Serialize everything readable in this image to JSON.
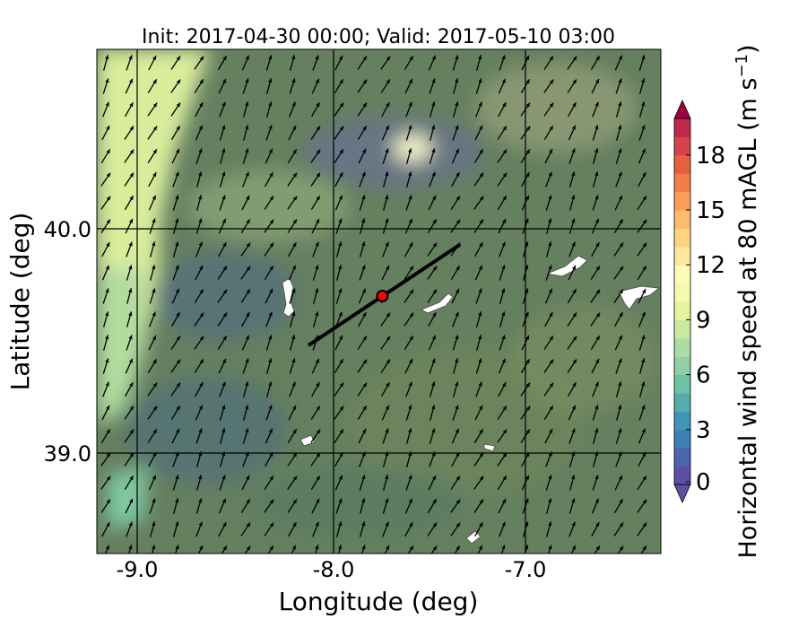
{
  "title": "Init: 2017-04-30 00:00; Valid: 2017-05-10 03:00",
  "xlabel": "Longitude (deg)",
  "ylabel": "Latitude (deg)",
  "colorbar_label": "Horizontal wind speed at 80 mAGL (m s$^{-1}$)",
  "colorbar_label_text": "Horizontal wind speed at 80 mAGL (m s",
  "colorbar_label_exp": "−1",
  "colorbar_label_close": ")",
  "chart_data": {
    "type": "heatmap",
    "xlim": [
      -9.25,
      -6.35
    ],
    "ylim": [
      38.55,
      40.8
    ],
    "x_ticks": [
      "-9.0",
      "-8.0",
      "-7.0"
    ],
    "x_tick_values": [
      -9.0,
      -8.0,
      -7.0
    ],
    "y_ticks": [
      "40.0",
      "39.0"
    ],
    "y_tick_values": [
      40.0,
      39.0
    ],
    "grid": true,
    "colorbar": {
      "min": 0,
      "max": 20,
      "step": 1,
      "extend": "both",
      "ticks": [
        "0",
        "3",
        "6",
        "9",
        "12",
        "15",
        "18"
      ],
      "tick_values": [
        0,
        3,
        6,
        9,
        12,
        15,
        18
      ],
      "colors": [
        "#5e4fa2",
        "#4a64ad",
        "#3e7fb8",
        "#3d95b8",
        "#56adaf",
        "#6cc2a5",
        "#8fd1a4",
        "#acdda3",
        "#cbe99e",
        "#e5f49a",
        "#f5f9b0",
        "#fffbb8",
        "#fee89a",
        "#fed381",
        "#fdbb6c",
        "#fb9d59",
        "#f57d4a",
        "#e6603f",
        "#d6434d",
        "#be2a4c"
      ],
      "under_color": "#5e4fa2",
      "over_color": "#9e0142"
    },
    "site_marker": {
      "lon": -7.74,
      "lat": 39.7,
      "color": "#ff0000"
    },
    "transect_line": {
      "start": [
        -8.12,
        39.48
      ],
      "end": [
        -7.34,
        39.93
      ],
      "color": "#000000"
    },
    "wind_vectors": {
      "dominant_direction": "south-southwest to north-northeast",
      "color": "#000000"
    }
  }
}
